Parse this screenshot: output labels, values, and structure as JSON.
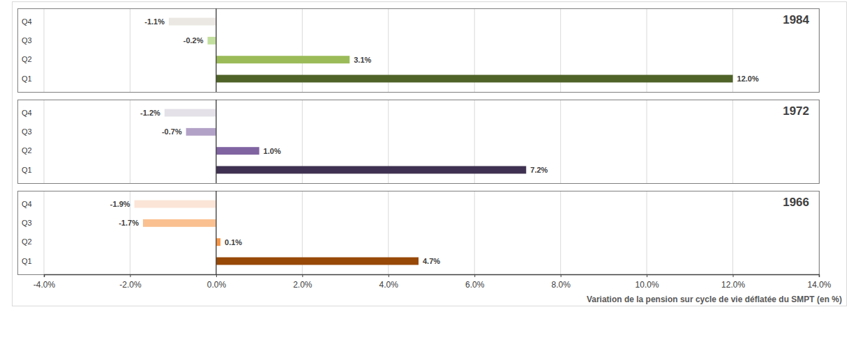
{
  "chart_data": [
    {
      "type": "bar",
      "title": "1984",
      "orientation": "horizontal",
      "categories": [
        "Q4",
        "Q3",
        "Q2",
        "Q1"
      ],
      "values": [
        -1.1,
        -0.2,
        3.1,
        12.0
      ],
      "value_labels": [
        "-1.1%",
        "-0.2%",
        "3.1%",
        "12.0%"
      ],
      "colors": [
        "#ebe8e3",
        "#c3df9f",
        "#9bbb59",
        "#4f6228"
      ],
      "xlim": [
        -4,
        14
      ],
      "xticks": [
        -4,
        -2,
        0,
        2,
        4,
        6,
        8,
        10,
        12,
        14
      ],
      "grid": true,
      "data_labels": true,
      "tick_labels": "y"
    },
    {
      "type": "bar",
      "title": "1972",
      "orientation": "horizontal",
      "categories": [
        "Q4",
        "Q3",
        "Q2",
        "Q1"
      ],
      "values": [
        -1.2,
        -0.7,
        1.0,
        7.2
      ],
      "value_labels": [
        "-1.2%",
        "-0.7%",
        "1.0%",
        "7.2%"
      ],
      "colors": [
        "#e4e2e8",
        "#b3a2c7",
        "#8064a2",
        "#3f3151"
      ],
      "xlim": [
        -4,
        14
      ],
      "xticks": [
        -4,
        -2,
        0,
        2,
        4,
        6,
        8,
        10,
        12,
        14
      ],
      "grid": true,
      "data_labels": true,
      "tick_labels": "y"
    },
    {
      "type": "bar",
      "title": "1966",
      "orientation": "horizontal",
      "categories": [
        "Q4",
        "Q3",
        "Q2",
        "Q1"
      ],
      "values": [
        -1.9,
        -1.7,
        0.1,
        4.7
      ],
      "value_labels": [
        "-1.9%",
        "-1.7%",
        "0.1%",
        "4.7%"
      ],
      "colors": [
        "#fbe5d6",
        "#fac090",
        "#f79646",
        "#984807"
      ],
      "xlim": [
        -4,
        14
      ],
      "xticks": [
        {
          "value": -4,
          "label": "-4.0%"
        },
        {
          "value": -2,
          "label": "-2.0%"
        },
        {
          "value": 0,
          "label": "0.0%"
        },
        {
          "value": 2,
          "label": "2.0%"
        },
        {
          "value": 4,
          "label": "4.0%"
        },
        {
          "value": 6,
          "label": "6.0%"
        },
        {
          "value": 8,
          "label": "8.0%"
        },
        {
          "value": 10,
          "label": "10.0%"
        },
        {
          "value": 12,
          "label": "12.0%"
        },
        {
          "value": 14,
          "label": "14.0%"
        }
      ],
      "xlabel": "Variation de la pension sur cycle de vie déflatée du SMPT (en %)",
      "grid": true,
      "data_labels": true
    }
  ]
}
